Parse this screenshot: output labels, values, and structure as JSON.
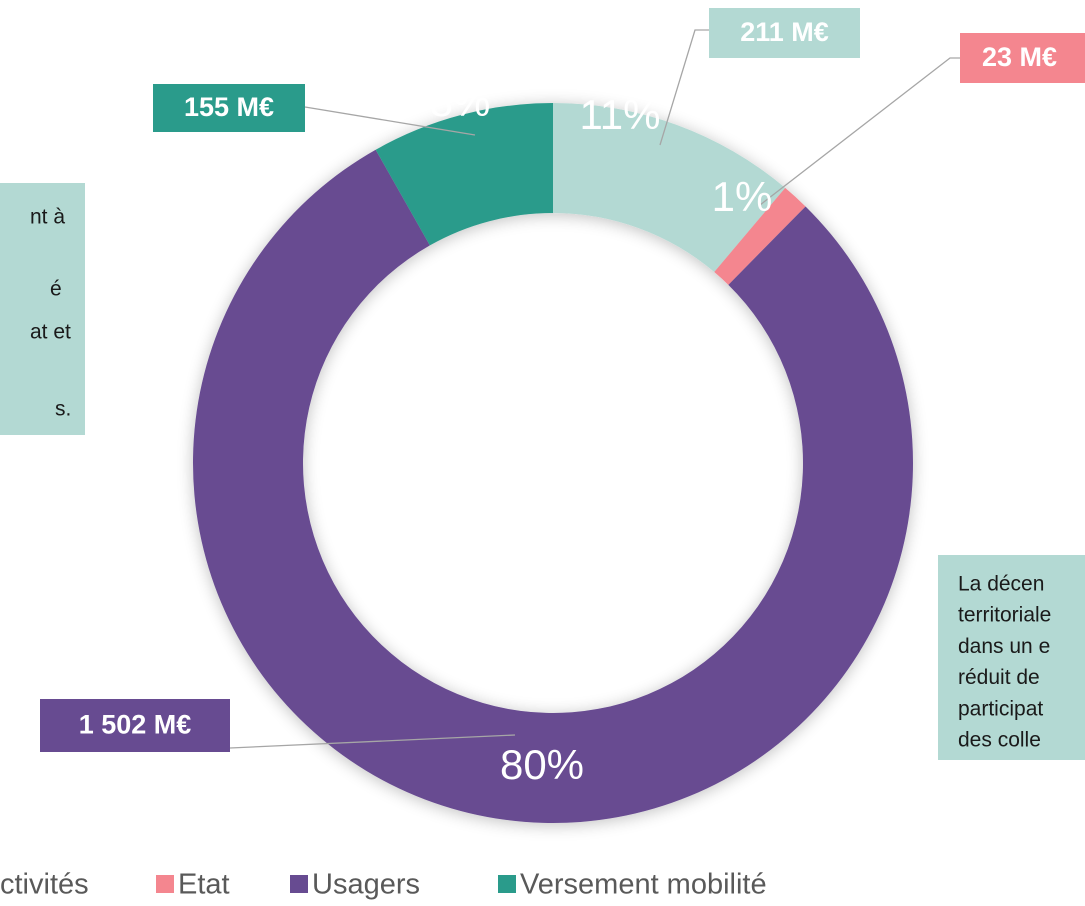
{
  "chart_data": {
    "type": "donut",
    "categories": [
      "ctivités",
      "Etat",
      "Usagers",
      "Versement mobilité"
    ],
    "values": [
      211,
      23,
      1502,
      155
    ],
    "value_labels": [
      "211 M€",
      "23 M€",
      "1 502 M€",
      "155 M€"
    ],
    "percent_labels": [
      "11%",
      "1%",
      "80%",
      "8%"
    ],
    "colors": [
      "#b3d9d3",
      "#f4868f",
      "#674b91",
      "#2a9b8b"
    ],
    "legend": "bottom",
    "notes": {
      "left": [
        "nt à",
        "é",
        "at et",
        "s."
      ],
      "right": [
        "La décen",
        "territoriale",
        "dans un e",
        "réduit de",
        "participat",
        "des colle"
      ]
    }
  }
}
